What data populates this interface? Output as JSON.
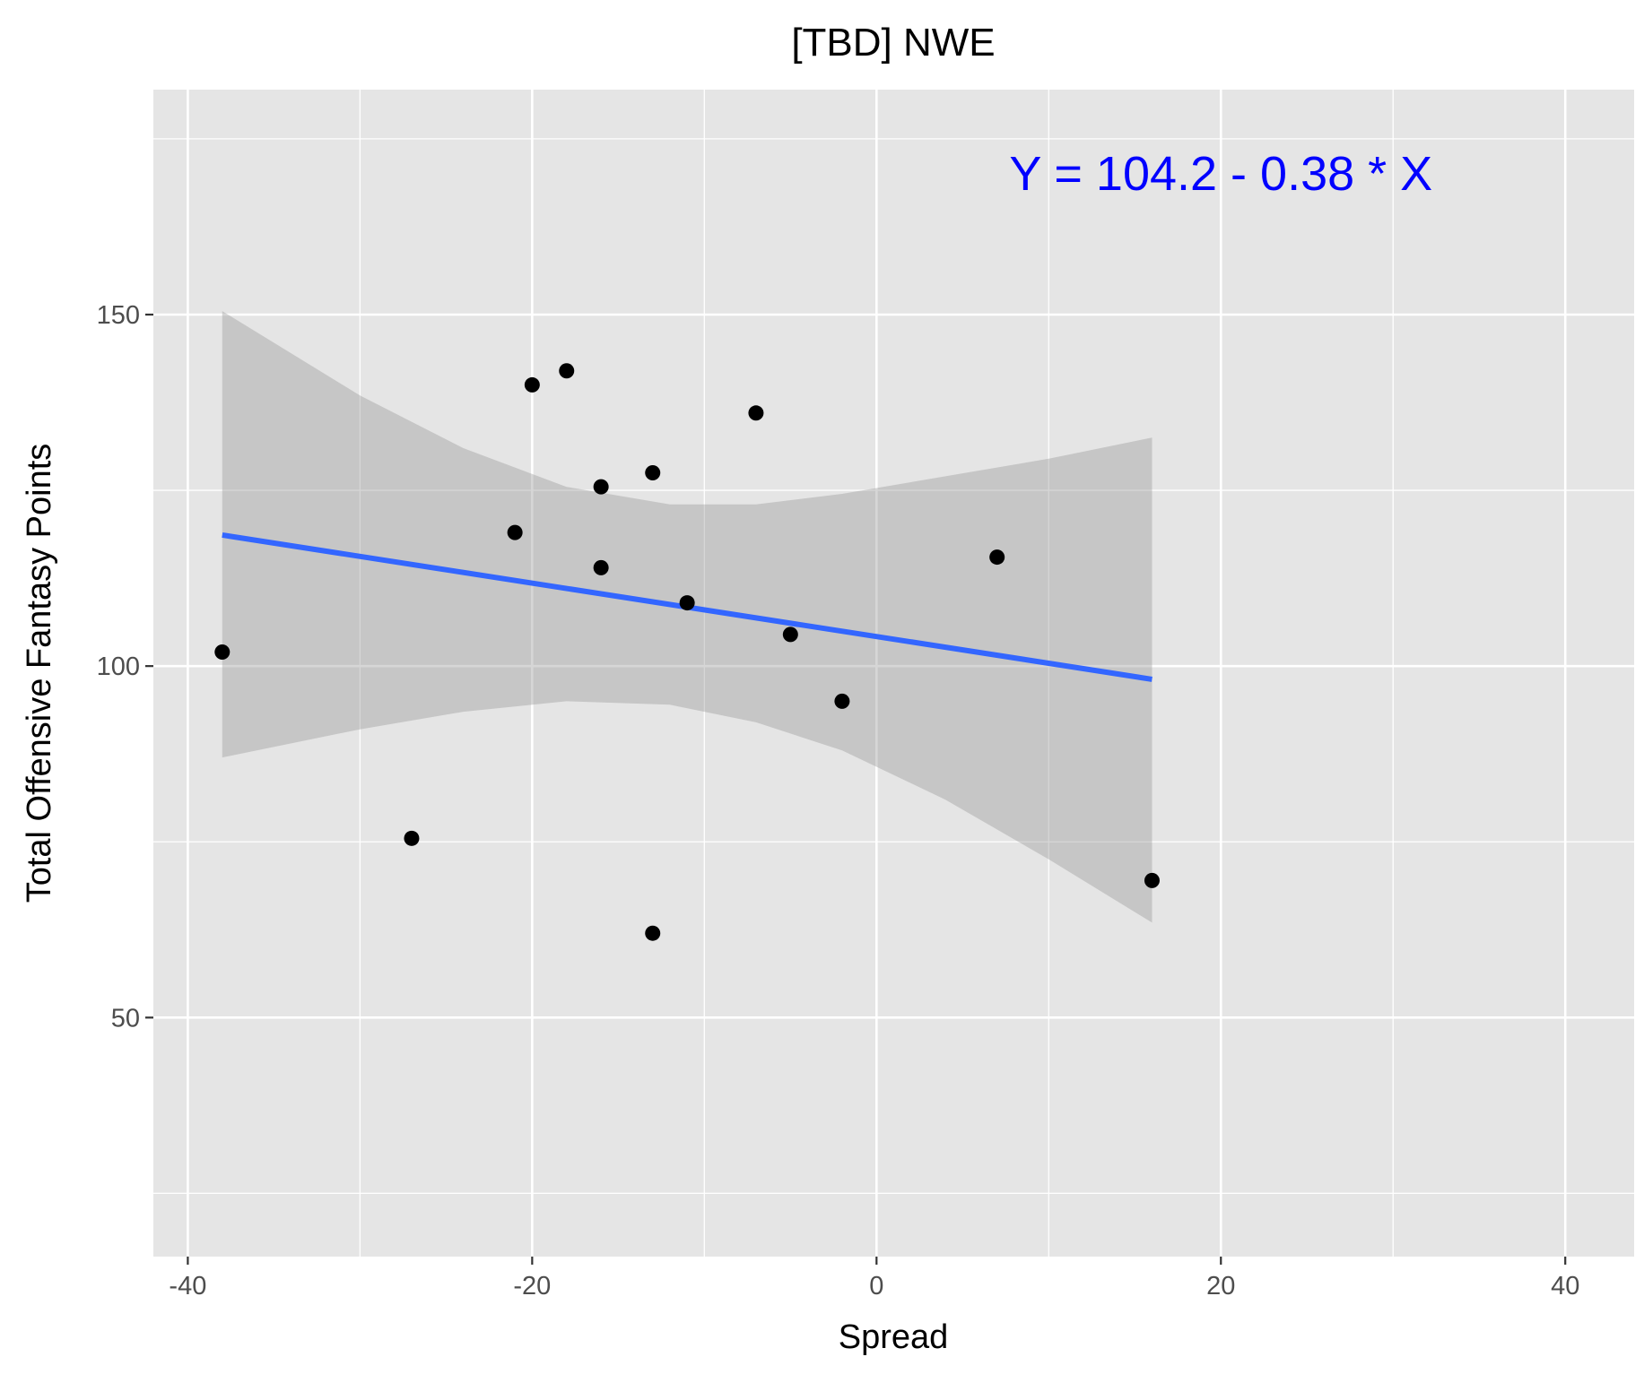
{
  "chart_data": {
    "type": "scatter",
    "title": "[TBD] NWE",
    "xlabel": "Spread",
    "ylabel": "Total Offensive Fantasy Points",
    "xlim": [
      -42,
      44
    ],
    "ylim": [
      16,
      182
    ],
    "x_ticks": [
      -40,
      -20,
      0,
      20,
      40
    ],
    "x_tick_labels": [
      "-40",
      "-20",
      "0",
      "20",
      "40"
    ],
    "y_ticks": [
      50,
      100,
      150
    ],
    "y_tick_labels": [
      "50",
      "100",
      "150"
    ],
    "x_minor_gridlines": [
      -30,
      -10,
      10,
      30
    ],
    "y_minor_gridlines": [
      25,
      75,
      125,
      175
    ],
    "grid": true,
    "points": [
      {
        "x": -38,
        "y": 102
      },
      {
        "x": -27,
        "y": 75.5
      },
      {
        "x": -21,
        "y": 119
      },
      {
        "x": -20,
        "y": 140
      },
      {
        "x": -18,
        "y": 142
      },
      {
        "x": -16,
        "y": 125.5
      },
      {
        "x": -16,
        "y": 114
      },
      {
        "x": -13,
        "y": 127.5
      },
      {
        "x": -13,
        "y": 62
      },
      {
        "x": -11,
        "y": 109
      },
      {
        "x": -7,
        "y": 136
      },
      {
        "x": -5,
        "y": 104.5
      },
      {
        "x": -2,
        "y": 95
      },
      {
        "x": 7,
        "y": 115.5
      },
      {
        "x": 16,
        "y": 69.5
      }
    ],
    "regression": {
      "intercept": 104.2,
      "slope": -0.38,
      "x_range": [
        -38,
        16
      ],
      "confidence_band": [
        {
          "x": -38,
          "lower": 87,
          "upper": 150.5
        },
        {
          "x": -30,
          "lower": 91,
          "upper": 138.5
        },
        {
          "x": -24,
          "lower": 93.5,
          "upper": 131
        },
        {
          "x": -18,
          "lower": 95,
          "upper": 125.5
        },
        {
          "x": -12,
          "lower": 94.5,
          "upper": 123
        },
        {
          "x": -7,
          "lower": 92,
          "upper": 123
        },
        {
          "x": -2,
          "lower": 88,
          "upper": 124.5
        },
        {
          "x": 4,
          "lower": 81,
          "upper": 127
        },
        {
          "x": 10,
          "lower": 72.5,
          "upper": 129.5
        },
        {
          "x": 16,
          "lower": 63.5,
          "upper": 132.5
        }
      ]
    },
    "annotation": {
      "text": "Y = 104.2 - 0.38 * X",
      "x": 20,
      "y": 170
    },
    "colors": {
      "panel_background": "#e5e5e5",
      "gridline": "#ffffff",
      "points": "#000000",
      "regression_line": "#3366ff",
      "confidence_band": "#999999",
      "annotation": "#0000ff",
      "tick_text": "#4d4d4d"
    }
  }
}
